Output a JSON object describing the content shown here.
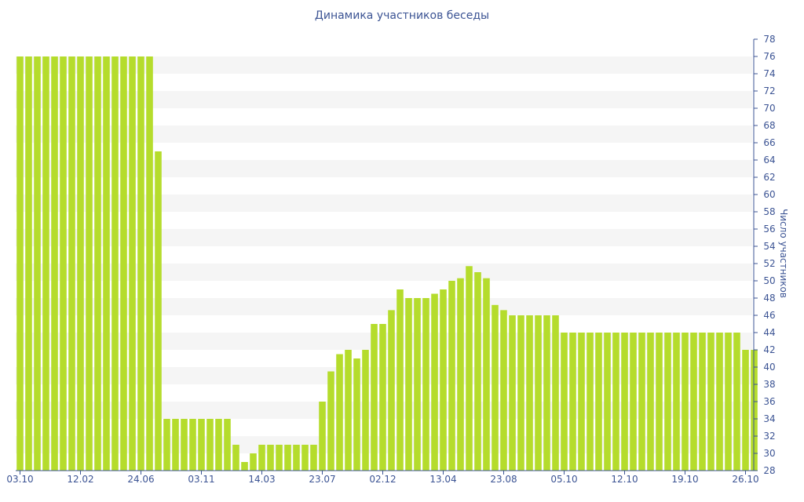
{
  "chart_data": {
    "type": "bar",
    "title": "Динамика участников беседы",
    "xlabel": "",
    "ylabel": "Число участников",
    "ylim": [
      28,
      78
    ],
    "yticks": [
      30,
      32,
      34,
      36,
      38,
      40,
      42,
      44,
      46,
      48,
      50,
      52,
      54,
      56,
      58,
      60,
      62,
      64,
      66,
      68,
      70,
      72,
      74,
      76,
      78
    ],
    "y_tick_labels_shown": [
      28,
      30,
      32,
      34,
      36,
      38,
      40,
      42,
      44,
      46,
      48,
      50,
      52,
      54,
      56,
      58,
      60,
      62,
      64,
      66,
      68,
      70,
      72,
      74,
      76,
      78
    ],
    "x_tick_labels": [
      "03.10",
      "12.02",
      "24.06",
      "03.11",
      "14.03",
      "23.07",
      "02.12",
      "13.04",
      "23.08",
      "05.10",
      "12.10",
      "19.10",
      "26.10"
    ],
    "x_tick_bar_index": [
      0,
      7,
      14,
      21,
      28,
      35,
      42,
      49,
      56,
      63,
      70,
      77,
      84
    ],
    "grid": "horizontal bands",
    "bar_color": "#b5dc2c",
    "values": [
      76,
      76,
      76,
      76,
      76,
      76,
      76,
      76,
      76,
      76,
      76,
      76,
      76,
      76,
      76,
      76,
      65,
      34,
      34,
      34,
      34,
      34,
      34,
      34,
      34,
      31,
      29,
      30,
      31,
      31,
      31,
      31,
      31,
      31,
      31,
      36,
      39.5,
      41.5,
      42,
      41,
      42,
      45,
      45,
      46.6,
      49,
      48,
      48,
      48,
      48.5,
      49,
      50,
      50.3,
      51.7,
      51,
      50.3,
      47.2,
      46.6,
      46,
      46,
      46,
      46,
      46,
      46,
      44,
      44,
      44,
      44,
      44,
      44,
      44,
      44,
      44,
      44,
      44,
      44,
      44,
      44,
      44,
      44,
      44,
      44,
      44,
      44,
      44,
      42,
      42
    ]
  },
  "colors": {
    "title": "#3c5494",
    "band": "#f5f5f5",
    "axis": "#3c5494"
  }
}
